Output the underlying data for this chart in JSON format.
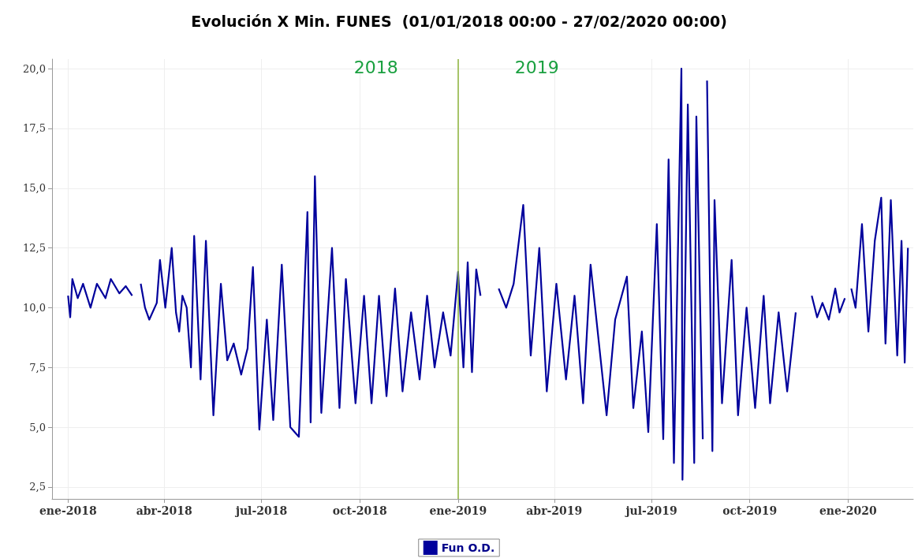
{
  "chart_data": {
    "type": "line",
    "title": "Evolución X Min. FUNES  (01/01/2018 00:00 - 27/02/2020 00:00)",
    "x": [
      "2018-01-01",
      "2018-01-03",
      "2018-01-05",
      "2018-01-10",
      "2018-01-15",
      "2018-01-22",
      "2018-01-28",
      "2018-02-05",
      "2018-02-10",
      "2018-02-18",
      "2018-02-24",
      "2018-03-02",
      "2018-03-05",
      "2018-03-10",
      "2018-03-14",
      "2018-03-18",
      "2018-03-25",
      "2018-03-28",
      "2018-04-02",
      "2018-04-08",
      "2018-04-12",
      "2018-04-15",
      "2018-04-18",
      "2018-04-22",
      "2018-04-26",
      "2018-04-29",
      "2018-05-05",
      "2018-05-10",
      "2018-05-17",
      "2018-05-24",
      "2018-05-30",
      "2018-06-05",
      "2018-06-12",
      "2018-06-18",
      "2018-06-23",
      "2018-06-29",
      "2018-07-06",
      "2018-07-12",
      "2018-07-20",
      "2018-07-28",
      "2018-08-05",
      "2018-08-13",
      "2018-08-16",
      "2018-08-20",
      "2018-08-26",
      "2018-09-05",
      "2018-09-12",
      "2018-09-18",
      "2018-09-27",
      "2018-10-05",
      "2018-10-12",
      "2018-10-19",
      "2018-10-26",
      "2018-11-03",
      "2018-11-10",
      "2018-11-18",
      "2018-11-26",
      "2018-12-03",
      "2018-12-10",
      "2018-12-18",
      "2018-12-25",
      "2019-01-01",
      "2019-01-06",
      "2019-01-10",
      "2019-01-14",
      "2019-01-18",
      "2019-01-22",
      "2019-01-30",
      "2019-02-08",
      "2019-02-15",
      "2019-02-22",
      "2019-03-03",
      "2019-03-10",
      "2019-03-18",
      "2019-03-25",
      "2019-04-03",
      "2019-04-12",
      "2019-04-20",
      "2019-04-28",
      "2019-05-05",
      "2019-05-20",
      "2019-05-28",
      "2019-06-08",
      "2019-06-14",
      "2019-06-22",
      "2019-06-28",
      "2019-07-06",
      "2019-07-12",
      "2019-07-17",
      "2019-07-22",
      "2019-07-29",
      "2019-07-30",
      "2019-08-04",
      "2019-08-10",
      "2019-08-12",
      "2019-08-18",
      "2019-08-20",
      "2019-08-22",
      "2019-08-27",
      "2019-08-29",
      "2019-09-05",
      "2019-09-14",
      "2019-09-20",
      "2019-09-28",
      "2019-10-06",
      "2019-10-14",
      "2019-10-20",
      "2019-10-28",
      "2019-11-05",
      "2019-11-13",
      "2019-11-18",
      "2019-11-28",
      "2019-12-03",
      "2019-12-08",
      "2019-12-14",
      "2019-12-20",
      "2019-12-24",
      "2019-12-29",
      "2020-01-01",
      "2020-01-04",
      "2020-01-08",
      "2020-01-14",
      "2020-01-20",
      "2020-01-26",
      "2020-02-01",
      "2020-02-05",
      "2020-02-10",
      "2020-02-16",
      "2020-02-20",
      "2020-02-23",
      "2020-02-26"
    ],
    "series": [
      {
        "name": "Fun O.D.",
        "color": "#00009c",
        "values": [
          10.5,
          9.6,
          11.2,
          10.4,
          11.0,
          10.0,
          11.0,
          10.4,
          11.2,
          10.6,
          10.9,
          10.5,
          null,
          11.0,
          10.0,
          9.5,
          10.2,
          12.0,
          10.0,
          12.5,
          9.8,
          9.0,
          10.5,
          10.0,
          7.5,
          13.0,
          7.0,
          12.8,
          5.5,
          11.0,
          7.8,
          8.5,
          7.2,
          8.3,
          11.7,
          4.9,
          9.5,
          5.3,
          11.8,
          5.0,
          4.6,
          14.0,
          5.2,
          15.5,
          5.6,
          12.5,
          5.8,
          11.2,
          6.0,
          10.5,
          6.0,
          10.5,
          6.3,
          10.8,
          6.5,
          9.8,
          7.0,
          10.5,
          7.5,
          9.8,
          8.0,
          11.5,
          7.5,
          11.9,
          7.3,
          11.6,
          10.5,
          null,
          10.8,
          10.0,
          11.0,
          14.3,
          8.0,
          12.5,
          6.5,
          11.0,
          7.0,
          10.5,
          6.0,
          11.8,
          5.5,
          9.5,
          11.3,
          5.8,
          9.0,
          4.8,
          13.5,
          4.5,
          16.2,
          3.5,
          20.0,
          2.8,
          18.5,
          3.5,
          18.0,
          4.5,
          null,
          19.5,
          4.0,
          14.5,
          6.0,
          12.0,
          5.5,
          10.0,
          5.8,
          10.5,
          6.0,
          9.8,
          6.5,
          9.8,
          null,
          10.5,
          9.6,
          10.2,
          9.5,
          10.8,
          9.8,
          10.4,
          null,
          10.8,
          10.0,
          13.5,
          9.0,
          12.8,
          14.6,
          8.5,
          14.5,
          8.0,
          12.8,
          7.7,
          12.5
        ]
      }
    ],
    "xlim": [
      "2017-12-17",
      "2020-03-02"
    ],
    "xticks": [
      {
        "value": "2018-01-01",
        "label": "ene-2018"
      },
      {
        "value": "2018-04-01",
        "label": "abr-2018"
      },
      {
        "value": "2018-07-01",
        "label": "jul-2018"
      },
      {
        "value": "2018-10-01",
        "label": "oct-2018"
      },
      {
        "value": "2019-01-01",
        "label": "ene-2019"
      },
      {
        "value": "2019-04-01",
        "label": "abr-2019"
      },
      {
        "value": "2019-07-01",
        "label": "jul-2019"
      },
      {
        "value": "2019-10-01",
        "label": "oct-2019"
      },
      {
        "value": "2020-01-01",
        "label": "ene-2020"
      }
    ],
    "ylim": [
      2,
      20.4
    ],
    "yticks": [
      {
        "value": 2.5,
        "label": "2,5"
      },
      {
        "value": 5,
        "label": "5,0"
      },
      {
        "value": 7.5,
        "label": "7,5"
      },
      {
        "value": 10,
        "label": "10,0"
      },
      {
        "value": 12.5,
        "label": "12,5"
      },
      {
        "value": 15,
        "label": "15,0"
      },
      {
        "value": 17.5,
        "label": "17,5"
      },
      {
        "value": 20,
        "label": "20,0"
      }
    ],
    "ref_lines": [
      {
        "axis": "x",
        "value": "2019-01-01",
        "color": "#8db33a"
      }
    ],
    "annotations": [
      "2018",
      "2019"
    ],
    "grid": true,
    "legend": "bottom",
    "marker": "none",
    "line_style": "solid"
  }
}
